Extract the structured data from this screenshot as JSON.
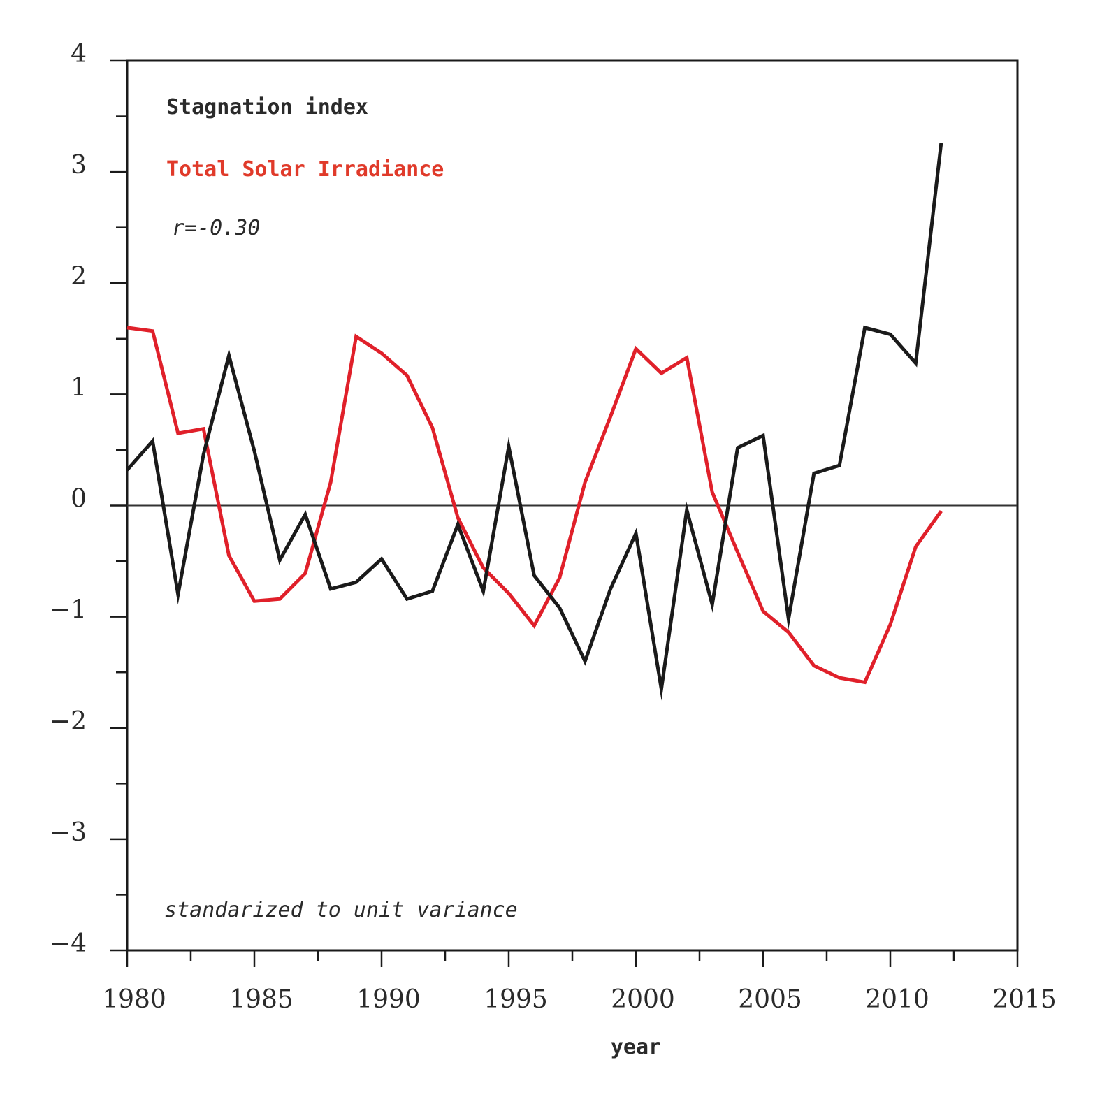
{
  "chart_data": {
    "type": "line",
    "title": "",
    "xlabel": "year",
    "ylabel": "",
    "xlim": [
      1980,
      2015
    ],
    "ylim": [
      -4,
      4
    ],
    "x_ticks": [
      1980,
      1985,
      1990,
      1995,
      2000,
      2005,
      2010,
      2015
    ],
    "x_tick_labels": [
      "1980",
      "1985",
      "1990",
      "1995",
      "2000",
      "2005",
      "2010",
      "2015"
    ],
    "x_minor_step": 2.5,
    "y_ticks": [
      4,
      3,
      2,
      1,
      0,
      -1,
      -2,
      -3,
      -4
    ],
    "y_tick_labels": [
      "4",
      "3",
      "2",
      "1",
      "0",
      "−1",
      "−2",
      "−3",
      "−4"
    ],
    "y_minor_step": 0.5,
    "grid": false,
    "zero_line": true,
    "legend_placement": "top-left",
    "annotations": {
      "correlation": "r=-0.30",
      "note": "standarized to unit variance"
    },
    "x": [
      1980,
      1981,
      1982,
      1983,
      1984,
      1985,
      1986,
      1987,
      1988,
      1989,
      1990,
      1991,
      1992,
      1993,
      1994,
      1995,
      1996,
      1997,
      1998,
      1999,
      2000,
      2001,
      2002,
      2003,
      2004,
      2005,
      2006,
      2007,
      2008,
      2009,
      2010,
      2011,
      2012
    ],
    "series": [
      {
        "name": "Stagnation index",
        "color": "#1a1a1a",
        "values": [
          0.32,
          0.58,
          -0.8,
          0.46,
          1.35,
          0.49,
          -0.49,
          -0.08,
          -0.75,
          -0.69,
          -0.48,
          -0.84,
          -0.77,
          -0.17,
          -0.77,
          0.53,
          -0.63,
          -0.92,
          -1.4,
          -0.75,
          -0.25,
          -1.65,
          -0.04,
          -0.89,
          0.52,
          0.63,
          -1.02,
          0.29,
          0.36,
          1.6,
          1.54,
          1.28,
          3.26
        ]
      },
      {
        "name": "Total Solar Irradiance",
        "color": "#e0202a",
        "values": [
          1.6,
          1.57,
          0.65,
          0.69,
          -0.45,
          -0.86,
          -0.84,
          -0.61,
          0.21,
          1.52,
          1.37,
          1.17,
          0.7,
          -0.11,
          -0.56,
          -0.79,
          -1.08,
          -0.65,
          0.21,
          0.8,
          1.41,
          1.19,
          1.33,
          0.12,
          -0.42,
          -0.95,
          -1.14,
          -1.44,
          -1.55,
          -1.59,
          -1.07,
          -0.37,
          -0.05
        ]
      }
    ],
    "legend_colors": {
      "stagnation": "#2a2a2a",
      "tsi": "#e03a2a"
    }
  }
}
